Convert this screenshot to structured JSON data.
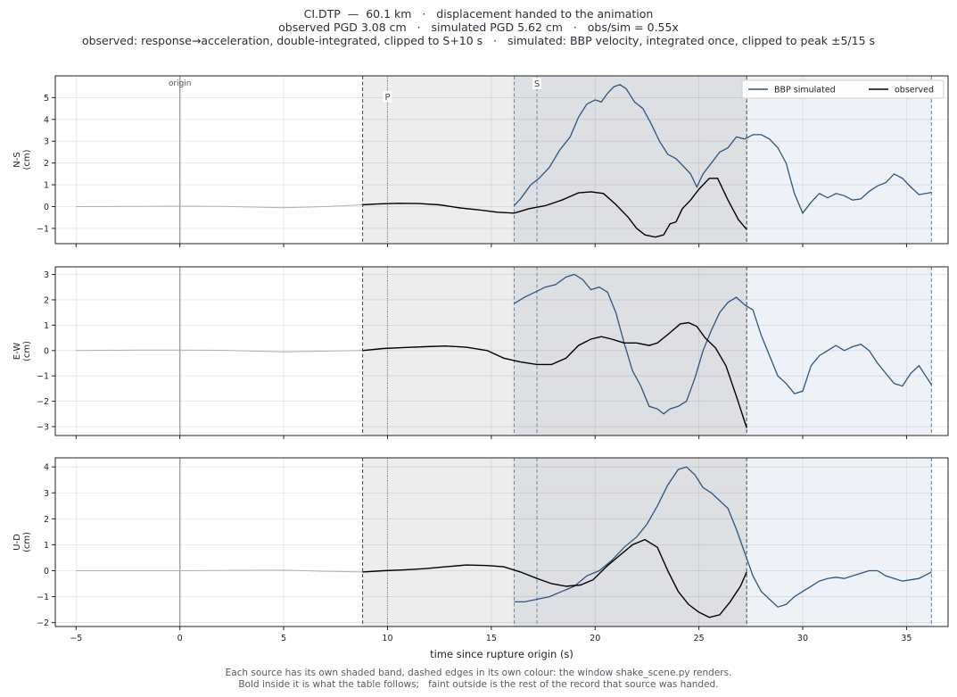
{
  "title_lines": [
    "CI.DTP  —  60.1 km   ·   displacement handed to the animation",
    "observed PGD 3.08 cm   ·   simulated PGD 5.62 cm   ·   obs/sim = 0.55x",
    "observed: response→acceleration, double-integrated, clipped to S+10 s   ·   simulated: BBP velocity, integrated once, clipped to peak ±5/15 s"
  ],
  "caption_lines": [
    "Each source has its own shaded band, dashed edges in its own colour: the window shake_scene.py renders.",
    "Bold inside it is what the table follows;   faint outside is the rest of the record that source was handed."
  ],
  "colors": {
    "observed": "#000000",
    "simulated": "#2c5680",
    "observed_band": "#ededed",
    "simulated_band": "#eef2f7",
    "overlap_band": "#dedfe3",
    "origin_line": "#9aa0b0",
    "faint_trace": "#b0b0b0"
  },
  "chart_data": {
    "type": "line",
    "xlabel": "time since rupture origin (s)",
    "xlim": [
      -6,
      37
    ],
    "xticks": [
      -5,
      0,
      5,
      10,
      15,
      20,
      25,
      30,
      35
    ],
    "markers": [
      {
        "label": "origin",
        "t": 0
      },
      {
        "label": "P",
        "t": 10.0
      },
      {
        "label": "S",
        "t": 17.2
      }
    ],
    "windows": {
      "observed": [
        8.8,
        27.3
      ],
      "simulated": [
        16.1,
        36.2
      ]
    },
    "legend": {
      "position": "top-right",
      "entries": [
        {
          "key": "simulated",
          "label": "BBP simulated"
        },
        {
          "key": "observed",
          "label": "observed"
        }
      ]
    },
    "panels": [
      {
        "ylabel": "N-S\n(cm)",
        "ylim": [
          -1.7,
          6.0
        ],
        "yticks": [
          -1,
          0,
          1,
          2,
          3,
          4,
          5
        ],
        "observed_faint": [
          [
            -5,
            0
          ],
          [
            -2,
            0.01
          ],
          [
            0,
            0.02
          ],
          [
            2,
            0.01
          ],
          [
            5,
            -0.05
          ],
          [
            7,
            0
          ],
          [
            8.8,
            0.08
          ]
        ],
        "observed": [
          [
            8.8,
            0.08
          ],
          [
            9.5,
            0.12
          ],
          [
            10.5,
            0.15
          ],
          [
            11.5,
            0.14
          ],
          [
            12.5,
            0.08
          ],
          [
            13.5,
            -0.06
          ],
          [
            14.5,
            -0.16
          ],
          [
            15.3,
            -0.26
          ],
          [
            16.1,
            -0.3
          ],
          [
            16.8,
            -0.1
          ],
          [
            17.6,
            0.04
          ],
          [
            18.4,
            0.3
          ],
          [
            19.2,
            0.63
          ],
          [
            19.8,
            0.68
          ],
          [
            20.4,
            0.6
          ],
          [
            21.0,
            0.1
          ],
          [
            21.6,
            -0.5
          ],
          [
            22.0,
            -1.0
          ],
          [
            22.4,
            -1.3
          ],
          [
            22.9,
            -1.4
          ],
          [
            23.3,
            -1.3
          ],
          [
            23.6,
            -0.8
          ],
          [
            23.9,
            -0.7
          ],
          [
            24.2,
            -0.1
          ],
          [
            24.6,
            0.3
          ],
          [
            25.0,
            0.8
          ],
          [
            25.5,
            1.3
          ],
          [
            25.9,
            1.3
          ],
          [
            26.4,
            0.3
          ],
          [
            26.9,
            -0.6
          ],
          [
            27.3,
            -1.05
          ]
        ],
        "simulated": [
          [
            16.1,
            0.05
          ],
          [
            16.4,
            0.35
          ],
          [
            16.9,
            1.0
          ],
          [
            17.3,
            1.3
          ],
          [
            17.8,
            1.8
          ],
          [
            18.3,
            2.6
          ],
          [
            18.8,
            3.2
          ],
          [
            19.2,
            4.1
          ],
          [
            19.6,
            4.7
          ],
          [
            20.0,
            4.9
          ],
          [
            20.3,
            4.8
          ],
          [
            20.6,
            5.2
          ],
          [
            20.9,
            5.5
          ],
          [
            21.2,
            5.6
          ],
          [
            21.5,
            5.4
          ],
          [
            21.9,
            4.8
          ],
          [
            22.3,
            4.5
          ],
          [
            22.7,
            3.8
          ],
          [
            23.1,
            3.0
          ],
          [
            23.5,
            2.4
          ],
          [
            23.9,
            2.2
          ],
          [
            24.3,
            1.8
          ],
          [
            24.6,
            1.5
          ],
          [
            24.9,
            0.9
          ],
          [
            25.2,
            1.5
          ],
          [
            25.6,
            2.0
          ],
          [
            26.0,
            2.5
          ],
          [
            26.4,
            2.7
          ],
          [
            26.8,
            3.2
          ],
          [
            27.2,
            3.1
          ],
          [
            27.6,
            3.3
          ],
          [
            28.0,
            3.3
          ],
          [
            28.4,
            3.1
          ],
          [
            28.8,
            2.7
          ],
          [
            29.2,
            2.0
          ],
          [
            29.6,
            0.6
          ],
          [
            30.0,
            -0.3
          ],
          [
            30.4,
            0.2
          ],
          [
            30.8,
            0.6
          ],
          [
            31.2,
            0.4
          ],
          [
            31.6,
            0.6
          ],
          [
            32.0,
            0.5
          ],
          [
            32.4,
            0.3
          ],
          [
            32.8,
            0.35
          ],
          [
            33.2,
            0.7
          ],
          [
            33.6,
            0.95
          ],
          [
            34.0,
            1.1
          ],
          [
            34.4,
            1.5
          ],
          [
            34.8,
            1.3
          ],
          [
            35.2,
            0.9
          ],
          [
            35.6,
            0.55
          ],
          [
            36.2,
            0.65
          ]
        ]
      },
      {
        "ylabel": "E-W\n(cm)",
        "ylim": [
          -3.35,
          3.3
        ],
        "yticks": [
          -3,
          -2,
          -1,
          0,
          1,
          2,
          3
        ],
        "observed_faint": [
          [
            -5,
            0
          ],
          [
            -2,
            0.02
          ],
          [
            0,
            0.02
          ],
          [
            2,
            0.01
          ],
          [
            5,
            -0.05
          ],
          [
            7,
            -0.02
          ],
          [
            8.8,
            0.0
          ]
        ],
        "observed": [
          [
            8.8,
            0.0
          ],
          [
            9.8,
            0.08
          ],
          [
            10.8,
            0.12
          ],
          [
            11.8,
            0.15
          ],
          [
            12.8,
            0.18
          ],
          [
            13.8,
            0.13
          ],
          [
            14.8,
            0.0
          ],
          [
            15.6,
            -0.3
          ],
          [
            16.4,
            -0.45
          ],
          [
            17.2,
            -0.55
          ],
          [
            17.9,
            -0.55
          ],
          [
            18.6,
            -0.3
          ],
          [
            19.2,
            0.2
          ],
          [
            19.8,
            0.45
          ],
          [
            20.3,
            0.55
          ],
          [
            20.8,
            0.45
          ],
          [
            21.4,
            0.3
          ],
          [
            22.0,
            0.3
          ],
          [
            22.6,
            0.2
          ],
          [
            23.0,
            0.3
          ],
          [
            23.6,
            0.7
          ],
          [
            24.1,
            1.05
          ],
          [
            24.5,
            1.1
          ],
          [
            24.9,
            0.95
          ],
          [
            25.3,
            0.5
          ],
          [
            25.8,
            0.1
          ],
          [
            26.3,
            -0.6
          ],
          [
            26.8,
            -1.8
          ],
          [
            27.3,
            -3.05
          ]
        ],
        "simulated": [
          [
            16.1,
            1.85
          ],
          [
            16.6,
            2.1
          ],
          [
            17.1,
            2.3
          ],
          [
            17.6,
            2.5
          ],
          [
            18.1,
            2.6
          ],
          [
            18.6,
            2.9
          ],
          [
            19.0,
            3.0
          ],
          [
            19.4,
            2.8
          ],
          [
            19.8,
            2.4
          ],
          [
            20.2,
            2.5
          ],
          [
            20.6,
            2.3
          ],
          [
            21.0,
            1.5
          ],
          [
            21.4,
            0.3
          ],
          [
            21.8,
            -0.8
          ],
          [
            22.2,
            -1.4
          ],
          [
            22.6,
            -2.2
          ],
          [
            23.0,
            -2.3
          ],
          [
            23.3,
            -2.5
          ],
          [
            23.6,
            -2.3
          ],
          [
            24.0,
            -2.2
          ],
          [
            24.4,
            -2.0
          ],
          [
            24.8,
            -1.1
          ],
          [
            25.2,
            0.0
          ],
          [
            25.6,
            0.8
          ],
          [
            26.0,
            1.5
          ],
          [
            26.4,
            1.9
          ],
          [
            26.8,
            2.1
          ],
          [
            27.2,
            1.8
          ],
          [
            27.6,
            1.6
          ],
          [
            28.0,
            0.6
          ],
          [
            28.4,
            -0.2
          ],
          [
            28.8,
            -1.0
          ],
          [
            29.2,
            -1.3
          ],
          [
            29.6,
            -1.7
          ],
          [
            30.0,
            -1.6
          ],
          [
            30.4,
            -0.6
          ],
          [
            30.8,
            -0.2
          ],
          [
            31.2,
            0.0
          ],
          [
            31.6,
            0.2
          ],
          [
            32.0,
            0.0
          ],
          [
            32.4,
            0.15
          ],
          [
            32.8,
            0.25
          ],
          [
            33.2,
            0.0
          ],
          [
            33.6,
            -0.5
          ],
          [
            34.0,
            -0.9
          ],
          [
            34.4,
            -1.3
          ],
          [
            34.8,
            -1.4
          ],
          [
            35.2,
            -0.9
          ],
          [
            35.6,
            -0.6
          ],
          [
            36.2,
            -1.35
          ]
        ]
      },
      {
        "ylabel": "U-D\n(cm)",
        "ylim": [
          -2.15,
          4.35
        ],
        "yticks": [
          -2,
          -1,
          0,
          1,
          2,
          3,
          4
        ],
        "observed_faint": [
          [
            -5,
            0
          ],
          [
            -2,
            0.0
          ],
          [
            0,
            0.0
          ],
          [
            2,
            0.01
          ],
          [
            5,
            0.02
          ],
          [
            7,
            -0.02
          ],
          [
            8.8,
            -0.05
          ]
        ],
        "observed": [
          [
            8.8,
            -0.05
          ],
          [
            9.8,
            0.0
          ],
          [
            10.8,
            0.03
          ],
          [
            11.8,
            0.08
          ],
          [
            12.8,
            0.15
          ],
          [
            13.8,
            0.22
          ],
          [
            14.8,
            0.2
          ],
          [
            15.6,
            0.15
          ],
          [
            16.4,
            -0.05
          ],
          [
            17.2,
            -0.3
          ],
          [
            17.9,
            -0.5
          ],
          [
            18.6,
            -0.6
          ],
          [
            19.3,
            -0.55
          ],
          [
            19.9,
            -0.35
          ],
          [
            20.6,
            0.2
          ],
          [
            21.2,
            0.6
          ],
          [
            21.8,
            1.0
          ],
          [
            22.4,
            1.2
          ],
          [
            23.0,
            0.9
          ],
          [
            23.5,
            0.0
          ],
          [
            24.0,
            -0.8
          ],
          [
            24.5,
            -1.3
          ],
          [
            25.0,
            -1.6
          ],
          [
            25.5,
            -1.8
          ],
          [
            26.0,
            -1.7
          ],
          [
            26.5,
            -1.2
          ],
          [
            27.0,
            -0.6
          ],
          [
            27.3,
            -0.05
          ]
        ],
        "simulated": [
          [
            16.1,
            -1.2
          ],
          [
            16.6,
            -1.2
          ],
          [
            17.2,
            -1.1
          ],
          [
            17.8,
            -1.0
          ],
          [
            18.4,
            -0.8
          ],
          [
            19.0,
            -0.6
          ],
          [
            19.6,
            -0.2
          ],
          [
            20.2,
            0.0
          ],
          [
            20.8,
            0.4
          ],
          [
            21.4,
            0.9
          ],
          [
            22.0,
            1.3
          ],
          [
            22.5,
            1.8
          ],
          [
            23.0,
            2.5
          ],
          [
            23.5,
            3.3
          ],
          [
            24.0,
            3.9
          ],
          [
            24.4,
            4.0
          ],
          [
            24.8,
            3.7
          ],
          [
            25.2,
            3.2
          ],
          [
            25.6,
            3.0
          ],
          [
            26.0,
            2.7
          ],
          [
            26.4,
            2.4
          ],
          [
            26.8,
            1.6
          ],
          [
            27.2,
            0.7
          ],
          [
            27.6,
            -0.2
          ],
          [
            28.0,
            -0.8
          ],
          [
            28.4,
            -1.1
          ],
          [
            28.8,
            -1.4
          ],
          [
            29.2,
            -1.3
          ],
          [
            29.6,
            -1.0
          ],
          [
            30.0,
            -0.8
          ],
          [
            30.4,
            -0.6
          ],
          [
            30.8,
            -0.4
          ],
          [
            31.2,
            -0.3
          ],
          [
            31.6,
            -0.25
          ],
          [
            32.0,
            -0.3
          ],
          [
            32.4,
            -0.2
          ],
          [
            32.8,
            -0.1
          ],
          [
            33.2,
            0.0
          ],
          [
            33.6,
            0.0
          ],
          [
            34.0,
            -0.2
          ],
          [
            34.4,
            -0.3
          ],
          [
            34.8,
            -0.4
          ],
          [
            35.2,
            -0.35
          ],
          [
            35.6,
            -0.3
          ],
          [
            36.2,
            -0.05
          ]
        ]
      }
    ]
  }
}
